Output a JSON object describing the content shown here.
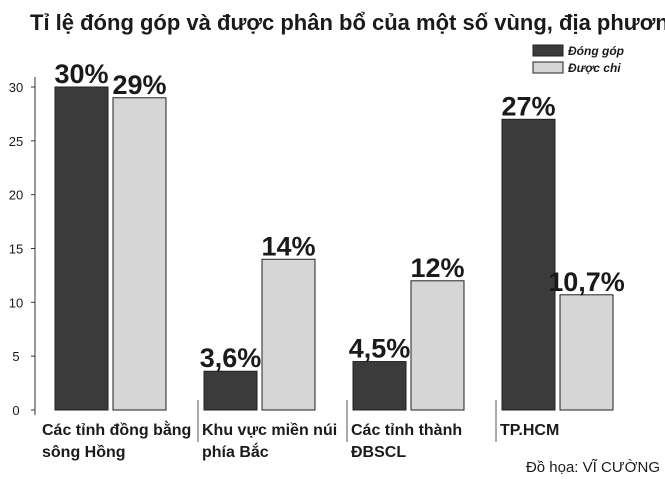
{
  "chart_data": {
    "type": "bar",
    "title": "Tỉ lệ đóng góp và được phân bổ của một số vùng, địa phương",
    "categories": [
      [
        "Các tỉnh đồng bằng",
        "sông Hồng"
      ],
      [
        "Khu vực miền núi",
        "phía Bắc"
      ],
      [
        "Các tỉnh thành",
        "ĐBSCL"
      ],
      [
        "TP.HCM"
      ]
    ],
    "series": [
      {
        "name": "Đóng góp",
        "color": "#3b3b3b",
        "values": [
          30,
          3.6,
          4.5,
          27
        ],
        "value_labels": [
          "30%",
          "3,6%",
          "4,5%",
          "27%"
        ]
      },
      {
        "name": "Được chi",
        "color": "#d6d6d6",
        "values": [
          29,
          14,
          12,
          10.7
        ],
        "value_labels": [
          "29%",
          "14%",
          "12%",
          "10,7%"
        ]
      }
    ],
    "ylim": [
      0,
      30
    ],
    "yticks": [
      0,
      5,
      10,
      15,
      20,
      25,
      30
    ],
    "legend": "top-right",
    "source": "Đồ họa: VĨ CƯỜNG"
  }
}
